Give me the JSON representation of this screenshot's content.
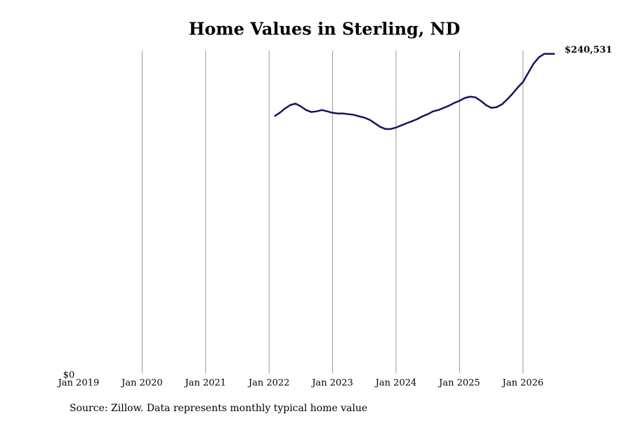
{
  "chart_data": {
    "type": "line",
    "title": "Home Values in Sterling, ND",
    "source": "Source: Zillow. Data represents monthly typical home value",
    "x": [
      "2022-02",
      "2022-03",
      "2022-04",
      "2022-05",
      "2022-06",
      "2022-07",
      "2022-08",
      "2022-09",
      "2022-10",
      "2022-11",
      "2022-12",
      "2023-01",
      "2023-02",
      "2023-03",
      "2023-04",
      "2023-05",
      "2023-06",
      "2023-07",
      "2023-08",
      "2023-09",
      "2023-10",
      "2023-11",
      "2023-12",
      "2024-01",
      "2024-02",
      "2024-03",
      "2024-04",
      "2024-05",
      "2024-06",
      "2024-07",
      "2024-08",
      "2024-09",
      "2024-10",
      "2024-11",
      "2024-12",
      "2025-01",
      "2025-02",
      "2025-03",
      "2025-04",
      "2025-05",
      "2025-06",
      "2025-07",
      "2025-08",
      "2025-09",
      "2025-10",
      "2025-11",
      "2025-12",
      "2026-01",
      "2026-02",
      "2026-03",
      "2026-04",
      "2026-05",
      "2026-06",
      "2026-07"
    ],
    "series": [
      {
        "color": "#15155e",
        "values": [
          193800,
          196400,
          199600,
          202200,
          203300,
          201200,
          198500,
          197000,
          197500,
          198500,
          197500,
          196400,
          195900,
          195900,
          195400,
          194900,
          193800,
          192800,
          191200,
          188600,
          185900,
          184300,
          184300,
          185400,
          187000,
          188600,
          190100,
          191700,
          193800,
          195400,
          197500,
          198500,
          200100,
          201700,
          203800,
          205400,
          207500,
          208500,
          208000,
          205400,
          202200,
          200100,
          200600,
          202700,
          206400,
          210600,
          215300,
          219500,
          226400,
          233200,
          237900,
          240500,
          240500,
          240531
        ],
        "value_labels": [
          null,
          null,
          null,
          null,
          null,
          null,
          null,
          null,
          null,
          null,
          null,
          null,
          null,
          null,
          null,
          null,
          null,
          null,
          null,
          null,
          null,
          null,
          null,
          null,
          null,
          null,
          null,
          null,
          null,
          null,
          null,
          null,
          null,
          null,
          null,
          null,
          null,
          null,
          null,
          null,
          null,
          null,
          null,
          null,
          null,
          null,
          null,
          null,
          null,
          null,
          null,
          null,
          null,
          "$240,531"
        ]
      }
    ],
    "xlim": [
      "2019-01",
      "2026-07"
    ],
    "xticks": [
      {
        "value": "2019-01",
        "label": "Jan 2019"
      },
      {
        "value": "2020-01",
        "label": "Jan 2020"
      },
      {
        "value": "2021-01",
        "label": "Jan 2021"
      },
      {
        "value": "2022-01",
        "label": "Jan 2022"
      },
      {
        "value": "2023-01",
        "label": "Jan 2023"
      },
      {
        "value": "2024-01",
        "label": "Jan 2024"
      },
      {
        "value": "2025-01",
        "label": "Jan 2025"
      },
      {
        "value": "2026-01",
        "label": "Jan 2026"
      }
    ],
    "ylim": [
      0,
      243000
    ],
    "yticks": [
      {
        "value": 0,
        "label": "$0"
      }
    ],
    "grid": true
  }
}
